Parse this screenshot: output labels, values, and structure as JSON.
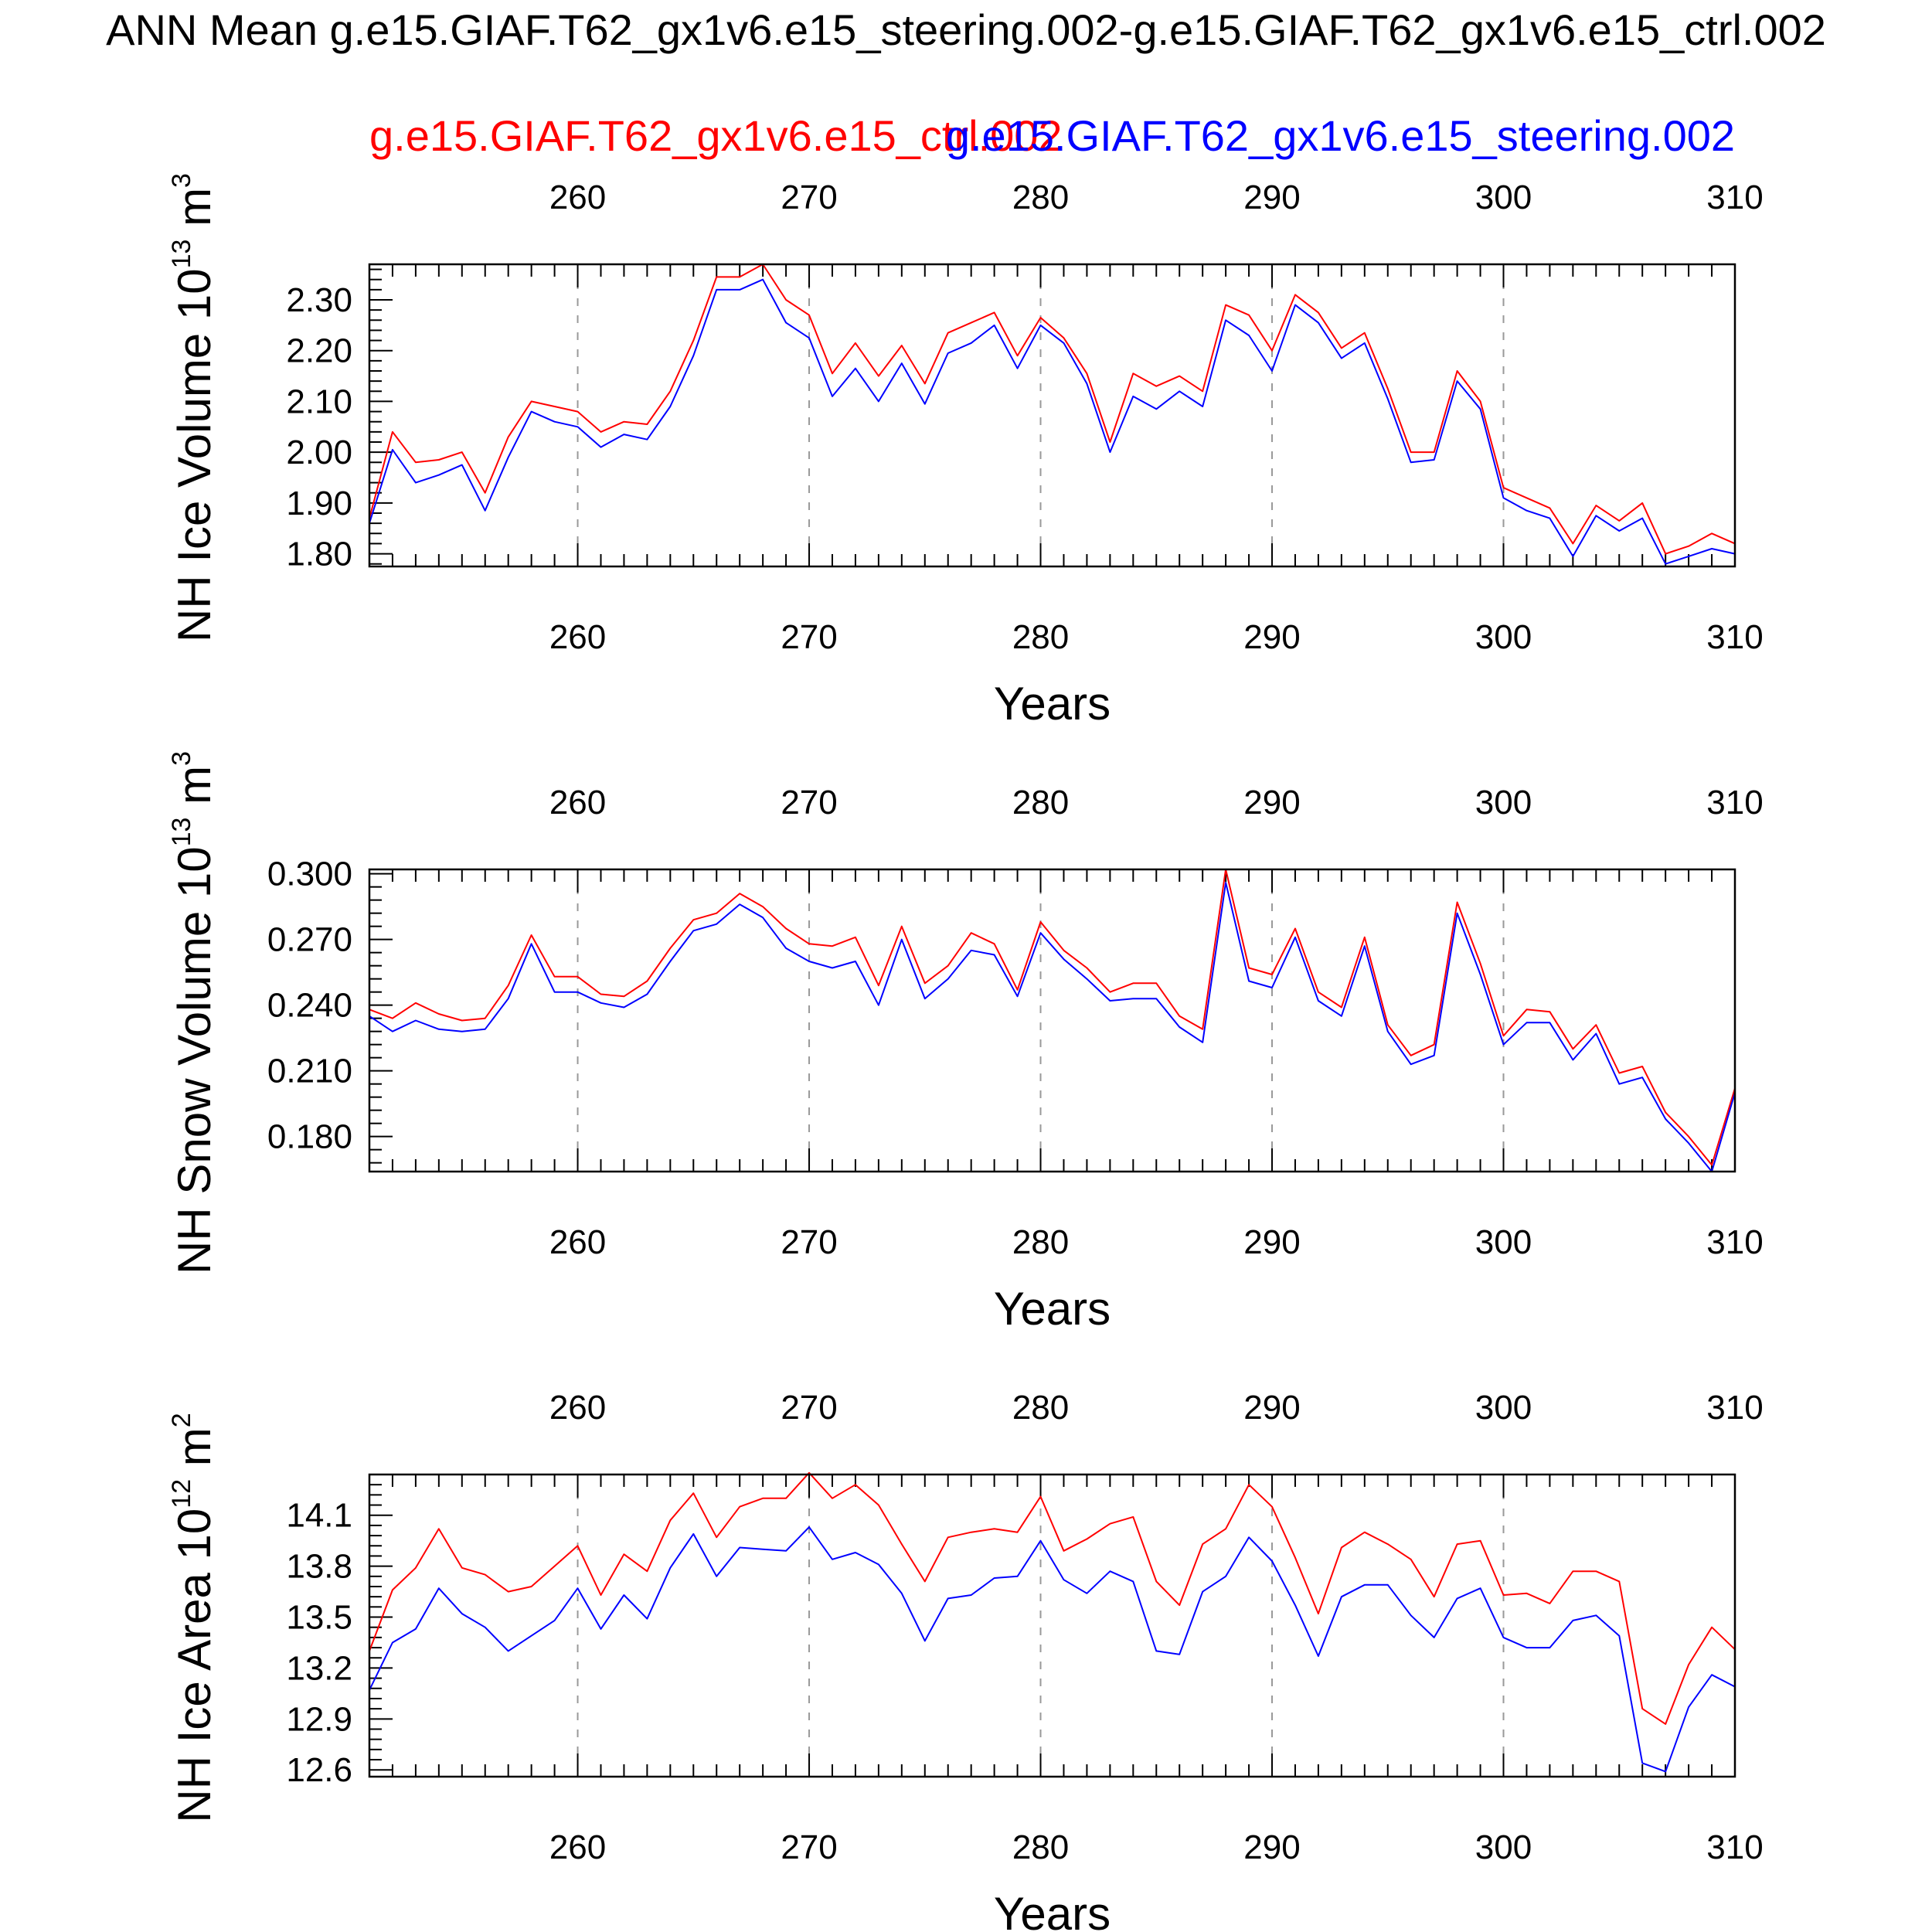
{
  "title": "ANN Mean g.e15.GIAF.T62_gx1v6.e15_steering.002-g.e15.GIAF.T62_gx1v6.e15_ctrl.002",
  "legend_ctrl": "g.e15.GIAF.T62_gx1v6.e15_ctrl.002",
  "legend_steer": "g.e15.GIAF.T62_gx1v6.e15_steering.002",
  "colors": {
    "ctrl": "#ff0000",
    "steer": "#0000ff",
    "axis": "#000000",
    "grid": "#999999"
  },
  "chart_data": [
    {
      "type": "line",
      "ylabel_text": "NH Ice Volume 10",
      "ylabel_exp": "13",
      "ylabel_unit": " m",
      "ylabel_unit_exp": "3",
      "xlabel": "Years",
      "xlim": [
        251,
        310
      ],
      "ylim": [
        1.775,
        2.37
      ],
      "x_ticks": [
        260,
        270,
        280,
        290,
        300,
        310
      ],
      "y_ticks": [
        1.8,
        1.9,
        2.0,
        2.1,
        2.2,
        2.3
      ],
      "y_tick_labels": [
        "1.80",
        "1.90",
        "2.00",
        "2.10",
        "2.20",
        "2.30"
      ],
      "y_minor_step": 0.02,
      "grid": "dashed vertical at x ticks",
      "x": [
        251,
        252,
        253,
        254,
        255,
        256,
        257,
        258,
        259,
        260,
        261,
        262,
        263,
        264,
        265,
        266,
        267,
        268,
        269,
        270,
        271,
        272,
        273,
        274,
        275,
        276,
        277,
        278,
        279,
        280,
        281,
        282,
        283,
        284,
        285,
        286,
        287,
        288,
        289,
        290,
        291,
        292,
        293,
        294,
        295,
        296,
        297,
        298,
        299,
        300,
        301,
        302,
        303,
        304,
        305,
        306,
        307,
        308,
        309,
        310
      ],
      "series": [
        {
          "name": "g.e15.GIAF.T62_gx1v6.e15_ctrl.002",
          "color": "#ff0000",
          "values": [
            1.87,
            2.04,
            1.98,
            1.985,
            2.0,
            1.92,
            2.03,
            2.1,
            2.09,
            2.08,
            2.04,
            2.06,
            2.055,
            2.12,
            2.22,
            2.345,
            2.345,
            2.37,
            2.3,
            2.27,
            2.155,
            2.215,
            2.15,
            2.21,
            2.135,
            2.235,
            2.255,
            2.275,
            2.19,
            2.265,
            2.225,
            2.155,
            2.02,
            2.155,
            2.13,
            2.15,
            2.12,
            2.29,
            2.27,
            2.2,
            2.31,
            2.275,
            2.205,
            2.235,
            2.125,
            2.0,
            2.0,
            2.16,
            2.1,
            1.93,
            1.91,
            1.89,
            1.82,
            1.895,
            1.865,
            1.9,
            1.8,
            1.815,
            1.84,
            1.82
          ]
        },
        {
          "name": "g.e15.GIAF.T62_gx1v6.e15_steering.002",
          "color": "#0000ff",
          "values": [
            1.86,
            2.005,
            1.94,
            1.955,
            1.975,
            1.885,
            1.99,
            2.08,
            2.06,
            2.05,
            2.01,
            2.035,
            2.025,
            2.09,
            2.19,
            2.32,
            2.32,
            2.34,
            2.255,
            2.225,
            2.11,
            2.165,
            2.1,
            2.175,
            2.095,
            2.195,
            2.215,
            2.25,
            2.165,
            2.25,
            2.215,
            2.135,
            2.0,
            2.11,
            2.085,
            2.12,
            2.09,
            2.26,
            2.23,
            2.16,
            2.29,
            2.255,
            2.185,
            2.215,
            2.105,
            1.98,
            1.985,
            2.14,
            2.085,
            1.91,
            1.885,
            1.87,
            1.795,
            1.875,
            1.845,
            1.87,
            1.78,
            1.795,
            1.81,
            1.8
          ]
        }
      ]
    },
    {
      "type": "line",
      "ylabel_text": "NH Snow Volume 10",
      "ylabel_exp": "13",
      "ylabel_unit": " m",
      "ylabel_unit_exp": "3",
      "xlabel": "Years",
      "xlim": [
        251,
        310
      ],
      "ylim": [
        0.164,
        0.302
      ],
      "x_ticks": [
        260,
        270,
        280,
        290,
        300,
        310
      ],
      "y_ticks": [
        0.18,
        0.21,
        0.24,
        0.27,
        0.3
      ],
      "y_tick_labels": [
        "0.180",
        "0.210",
        "0.240",
        "0.270",
        "0.300"
      ],
      "y_minor_step": 0.006,
      "grid": "dashed vertical at x ticks",
      "x": [
        251,
        252,
        253,
        254,
        255,
        256,
        257,
        258,
        259,
        260,
        261,
        262,
        263,
        264,
        265,
        266,
        267,
        268,
        269,
        270,
        271,
        272,
        273,
        274,
        275,
        276,
        277,
        278,
        279,
        280,
        281,
        282,
        283,
        284,
        285,
        286,
        287,
        288,
        289,
        290,
        291,
        292,
        293,
        294,
        295,
        296,
        297,
        298,
        299,
        300,
        301,
        302,
        303,
        304,
        305,
        306,
        307,
        308,
        309,
        310
      ],
      "series": [
        {
          "name": "g.e15.GIAF.T62_gx1v6.e15_ctrl.002",
          "color": "#ff0000",
          "values": [
            0.238,
            0.234,
            0.241,
            0.236,
            0.233,
            0.234,
            0.249,
            0.272,
            0.253,
            0.253,
            0.245,
            0.244,
            0.251,
            0.266,
            0.279,
            0.282,
            0.291,
            0.285,
            0.275,
            0.268,
            0.267,
            0.271,
            0.249,
            0.276,
            0.25,
            0.258,
            0.273,
            0.268,
            0.247,
            0.278,
            0.265,
            0.257,
            0.246,
            0.25,
            0.25,
            0.235,
            0.229,
            0.302,
            0.257,
            0.254,
            0.275,
            0.246,
            0.239,
            0.271,
            0.231,
            0.217,
            0.222,
            0.287,
            0.259,
            0.226,
            0.238,
            0.237,
            0.22,
            0.231,
            0.209,
            0.212,
            0.191,
            0.18,
            0.167,
            0.202
          ]
        },
        {
          "name": "g.e15.GIAF.T62_gx1v6.e15_steering.002",
          "color": "#0000ff",
          "values": [
            0.235,
            0.228,
            0.233,
            0.229,
            0.228,
            0.229,
            0.243,
            0.268,
            0.246,
            0.246,
            0.241,
            0.239,
            0.245,
            0.26,
            0.274,
            0.277,
            0.286,
            0.28,
            0.266,
            0.26,
            0.257,
            0.26,
            0.24,
            0.27,
            0.243,
            0.252,
            0.265,
            0.263,
            0.244,
            0.273,
            0.261,
            0.252,
            0.242,
            0.243,
            0.243,
            0.23,
            0.223,
            0.296,
            0.251,
            0.248,
            0.271,
            0.242,
            0.235,
            0.267,
            0.228,
            0.213,
            0.217,
            0.282,
            0.254,
            0.222,
            0.232,
            0.232,
            0.215,
            0.227,
            0.204,
            0.207,
            0.188,
            0.177,
            0.164,
            0.2
          ]
        }
      ]
    },
    {
      "type": "line",
      "ylabel_text": "NH Ice Area 10",
      "ylabel_exp": "12",
      "ylabel_unit": " m",
      "ylabel_unit_exp": "2",
      "xlabel": "Years",
      "xlim": [
        251,
        310
      ],
      "ylim": [
        12.56,
        14.34
      ],
      "x_ticks": [
        260,
        270,
        280,
        290,
        300,
        310
      ],
      "y_ticks": [
        12.6,
        12.9,
        13.2,
        13.5,
        13.8,
        14.1
      ],
      "y_tick_labels": [
        "12.6",
        "12.9",
        "13.2",
        "13.5",
        "13.8",
        "14.1"
      ],
      "y_minor_step": 0.06,
      "grid": "dashed vertical at x ticks",
      "x": [
        251,
        252,
        253,
        254,
        255,
        256,
        257,
        258,
        259,
        260,
        261,
        262,
        263,
        264,
        265,
        266,
        267,
        268,
        269,
        270,
        271,
        272,
        273,
        274,
        275,
        276,
        277,
        278,
        279,
        280,
        281,
        282,
        283,
        284,
        285,
        286,
        287,
        288,
        289,
        290,
        291,
        292,
        293,
        294,
        295,
        296,
        297,
        298,
        299,
        300,
        301,
        302,
        303,
        304,
        305,
        306,
        307,
        308,
        309,
        310
      ],
      "series": [
        {
          "name": "g.e15.GIAF.T62_gx1v6.e15_ctrl.002",
          "color": "#ff0000",
          "values": [
            13.3,
            13.66,
            13.79,
            14.02,
            13.79,
            13.75,
            13.65,
            13.68,
            13.8,
            13.92,
            13.63,
            13.87,
            13.77,
            14.07,
            14.23,
            13.97,
            14.15,
            14.2,
            14.2,
            14.35,
            14.2,
            14.28,
            14.16,
            13.93,
            13.71,
            13.97,
            14.0,
            14.02,
            14.0,
            14.21,
            13.89,
            13.96,
            14.05,
            14.09,
            13.71,
            13.57,
            13.93,
            14.02,
            14.28,
            14.15,
            13.85,
            13.52,
            13.91,
            14.0,
            13.93,
            13.84,
            13.62,
            13.93,
            13.95,
            13.63,
            13.64,
            13.58,
            13.77,
            13.77,
            13.71,
            12.96,
            12.87,
            13.22,
            13.44,
            13.31
          ]
        },
        {
          "name": "g.e15.GIAF.T62_gx1v6.e15_steering.002",
          "color": "#0000ff",
          "values": [
            13.07,
            13.35,
            13.43,
            13.67,
            13.52,
            13.44,
            13.3,
            13.39,
            13.48,
            13.67,
            13.43,
            13.63,
            13.49,
            13.79,
            13.99,
            13.74,
            13.91,
            13.9,
            13.89,
            14.03,
            13.84,
            13.88,
            13.81,
            13.64,
            13.36,
            13.61,
            13.63,
            13.73,
            13.74,
            13.95,
            13.72,
            13.64,
            13.77,
            13.71,
            13.3,
            13.28,
            13.65,
            13.74,
            13.97,
            13.83,
            13.57,
            13.27,
            13.62,
            13.69,
            13.69,
            13.51,
            13.38,
            13.61,
            13.67,
            13.38,
            13.32,
            13.32,
            13.48,
            13.51,
            13.39,
            12.64,
            12.59,
            12.97,
            13.16,
            13.09
          ]
        }
      ]
    }
  ]
}
